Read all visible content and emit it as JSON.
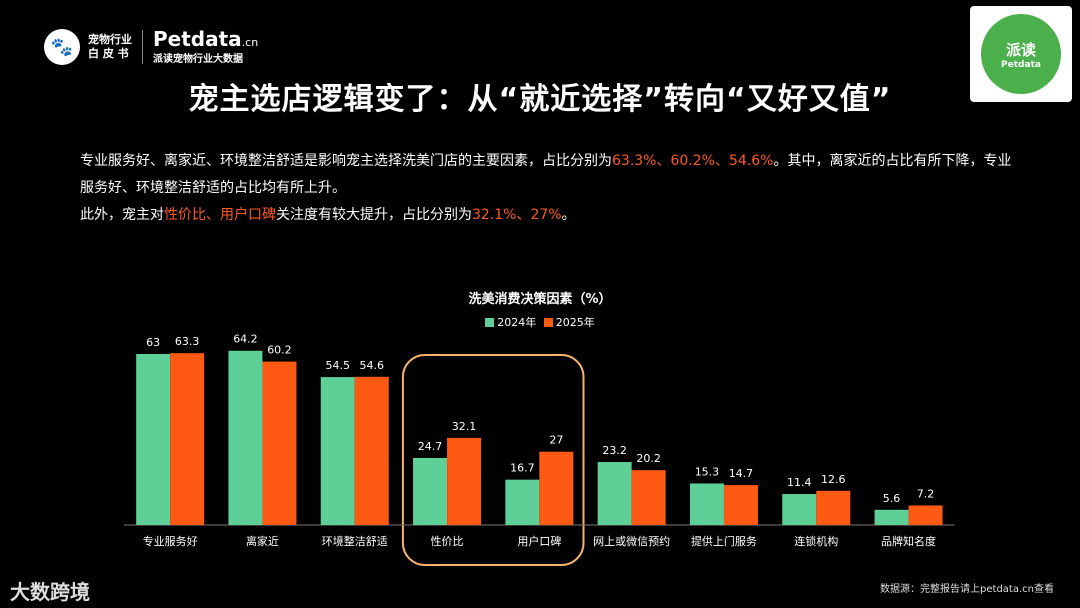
{
  "logo": {
    "whitebook_line1": "宠物行业",
    "whitebook_line2": "白 皮 书",
    "brand": "Petdata",
    "brand_suffix": ".cn",
    "brand_sub": "派读宠物行业大数据",
    "icon": "pet-face-icon"
  },
  "qr": {
    "label": "派读",
    "sub": "Petdata"
  },
  "title": "宠主选店逻辑变了：从“就近选择”转向“又好又值”",
  "desc": {
    "p1_a": "专业服务好、离家近、环境整洁舒适是影响宠主选择洗美门店的主要因素，占比分别为",
    "p1_v1": "63.3%",
    "p1_s1": "、",
    "p1_v2": "60.2%",
    "p1_s2": "、",
    "p1_v3": "54.6%",
    "p1_b": "。其中，离家近的占比有所下降，专业服务好、环境整洁舒适的占比均有所上升。",
    "p2_a": "此外，宠主对",
    "p2_h": "性价比、用户口碑",
    "p2_b": "关注度有较大提升，占比分别为",
    "p2_v1": "32.1%",
    "p2_s": "、",
    "p2_v2": "27%",
    "p2_c": "。"
  },
  "chart_data": {
    "type": "bar",
    "title": "洗美消费决策因素（%）",
    "categories": [
      "专业服务好",
      "离家近",
      "环境整洁舒适",
      "性价比",
      "用户口碑",
      "网上或微信预约",
      "提供上门服务",
      "连锁机构",
      "品牌知名度"
    ],
    "series": [
      {
        "name": "2024年",
        "color": "#5ecf97",
        "values": [
          63,
          64.2,
          54.5,
          24.7,
          16.7,
          23.2,
          15.3,
          11.4,
          5.6
        ]
      },
      {
        "name": "2025年",
        "color": "#ff5a14",
        "values": [
          63.3,
          60.2,
          54.6,
          32.1,
          27,
          20.2,
          14.7,
          12.6,
          7.2
        ]
      }
    ],
    "ylim": [
      0,
      70
    ],
    "grid": false,
    "legend": "top-center",
    "highlight_categories": [
      "性价比",
      "用户口碑"
    ],
    "highlight_color": "#f5b26b"
  },
  "footer": {
    "brand": "大数跨境",
    "source": "数据源：完整报告请上petdata.cn查看"
  }
}
